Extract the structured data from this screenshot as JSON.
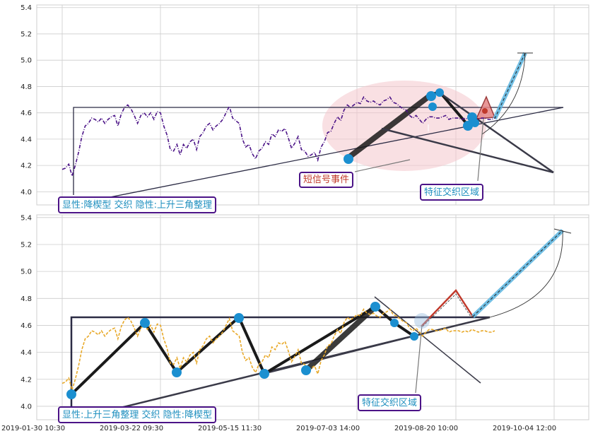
{
  "chart_data": [
    {
      "type": "line",
      "panel": "top",
      "title": "",
      "xlabel": "",
      "ylabel": "",
      "ylim": [
        3.9,
        5.42
      ],
      "yticks": [
        "4.0",
        "4.2",
        "4.4",
        "4.6",
        "4.8",
        "5.0",
        "5.2",
        "5.4"
      ],
      "grid": true,
      "series": [
        {
          "color": "#4b1387",
          "x": [
            0,
            5,
            10,
            15,
            20,
            25,
            30,
            35,
            40,
            45,
            50,
            55,
            60,
            65,
            70,
            75,
            80,
            85,
            90,
            95,
            100,
            105,
            110,
            115,
            120,
            125,
            130,
            135,
            140,
            145,
            150,
            155,
            160,
            165,
            170,
            175,
            180,
            185,
            190,
            195,
            200,
            205,
            210,
            215,
            220,
            225,
            230,
            235,
            240,
            245,
            250,
            255,
            260,
            265,
            270,
            275,
            280,
            285,
            290,
            295,
            300,
            305,
            310,
            315,
            320,
            325,
            330,
            335,
            340,
            345,
            350,
            355,
            360,
            365,
            370,
            375,
            380,
            385,
            390,
            395,
            400,
            405,
            410,
            415,
            420,
            425,
            430,
            435,
            440,
            445,
            450,
            455,
            460,
            465,
            470,
            475,
            480,
            485,
            490,
            495,
            500,
            505,
            510,
            515,
            520,
            525,
            530,
            535,
            540,
            545,
            550,
            555,
            560,
            565,
            570,
            575,
            580,
            585,
            590,
            595,
            600,
            605,
            610,
            615,
            620,
            625,
            630,
            635,
            640,
            645,
            650,
            655,
            660
          ],
          "values": [
            4.17,
            4.18,
            4.21,
            4.12,
            4.2,
            4.3,
            4.42,
            4.5,
            4.52,
            4.56,
            4.55,
            4.53,
            4.56,
            4.52,
            4.55,
            4.57,
            4.58,
            4.5,
            4.59,
            4.64,
            4.66,
            4.63,
            4.58,
            4.52,
            4.58,
            4.6,
            4.57,
            4.6,
            4.55,
            4.61,
            4.6,
            4.5,
            4.43,
            4.32,
            4.31,
            4.36,
            4.28,
            4.36,
            4.33,
            4.38,
            4.4,
            4.32,
            4.42,
            4.45,
            4.5,
            4.52,
            4.47,
            4.5,
            4.52,
            4.55,
            4.6,
            4.65,
            4.56,
            4.54,
            4.52,
            4.4,
            4.34,
            4.36,
            4.29,
            4.25,
            4.31,
            4.33,
            4.38,
            4.36,
            4.44,
            4.42,
            4.47,
            4.46,
            4.48,
            4.41,
            4.33,
            4.37,
            4.42,
            4.32,
            4.31,
            4.27,
            4.28,
            4.3,
            4.24,
            4.34,
            4.38,
            4.45,
            4.46,
            4.52,
            4.57,
            4.54,
            4.62,
            4.66,
            4.64,
            4.66,
            4.68,
            4.67,
            4.72,
            4.69,
            4.68,
            4.69,
            4.67,
            4.66,
            4.69,
            4.7,
            4.72,
            4.68,
            4.67,
            4.65,
            4.63,
            4.62,
            4.58,
            4.56,
            4.58,
            4.55,
            4.52,
            4.55,
            4.57,
            4.57,
            4.56,
            4.56,
            4.57,
            4.58,
            4.55,
            4.56,
            4.56,
            4.56,
            4.55,
            4.56,
            4.55,
            4.57,
            4.56,
            4.55,
            4.56,
            4.56,
            4.55,
            4.55,
            4.56
          ]
        }
      ],
      "annotations": [
        {
          "text": "显性:降楔型 交织 隐性:上升三角整理",
          "color": "#1f8fbf",
          "border": "#4b1387"
        },
        {
          "text": "短信号事件",
          "color": "#c0392b",
          "border": "#4b1387"
        },
        {
          "text": "特征交织区域",
          "color": "#1f8fbf",
          "border": "#4b1387"
        }
      ]
    },
    {
      "type": "line",
      "panel": "bottom",
      "title": "",
      "xlabel": "",
      "ylabel": "",
      "ylim": [
        3.9,
        5.42
      ],
      "yticks": [
        "4.0",
        "4.2",
        "4.4",
        "4.6",
        "4.8",
        "5.0",
        "5.2",
        "5.4"
      ],
      "grid": true,
      "series": [
        {
          "color": "#e8a92a",
          "x": [
            0,
            5,
            10,
            15,
            20,
            25,
            30,
            35,
            40,
            45,
            50,
            55,
            60,
            65,
            70,
            75,
            80,
            85,
            90,
            95,
            100,
            105,
            110,
            115,
            120,
            125,
            130,
            135,
            140,
            145,
            150,
            155,
            160,
            165,
            170,
            175,
            180,
            185,
            190,
            195,
            200,
            205,
            210,
            215,
            220,
            225,
            230,
            235,
            240,
            245,
            250,
            255,
            260,
            265,
            270,
            275,
            280,
            285,
            290,
            295,
            300,
            305,
            310,
            315,
            320,
            325,
            330,
            335,
            340,
            345,
            350,
            355,
            360,
            365,
            370,
            375,
            380,
            385,
            390,
            395,
            400,
            405,
            410,
            415,
            420,
            425,
            430,
            435,
            440,
            445,
            450,
            455,
            460,
            465,
            470,
            475,
            480,
            485,
            490,
            495,
            500,
            505,
            510,
            515,
            520,
            525,
            530,
            535,
            540,
            545,
            550,
            555,
            560,
            565,
            570,
            575,
            580,
            585,
            590,
            595,
            600,
            605,
            610,
            615,
            620,
            625,
            630,
            635,
            640,
            645,
            650,
            655,
            660
          ],
          "values": [
            4.17,
            4.18,
            4.21,
            4.12,
            4.2,
            4.3,
            4.42,
            4.5,
            4.52,
            4.56,
            4.55,
            4.53,
            4.56,
            4.52,
            4.55,
            4.57,
            4.58,
            4.5,
            4.59,
            4.64,
            4.66,
            4.63,
            4.58,
            4.52,
            4.58,
            4.6,
            4.57,
            4.6,
            4.55,
            4.61,
            4.6,
            4.5,
            4.43,
            4.32,
            4.31,
            4.36,
            4.28,
            4.36,
            4.33,
            4.38,
            4.4,
            4.32,
            4.42,
            4.45,
            4.5,
            4.52,
            4.47,
            4.5,
            4.52,
            4.55,
            4.6,
            4.65,
            4.56,
            4.54,
            4.52,
            4.4,
            4.34,
            4.36,
            4.29,
            4.25,
            4.31,
            4.33,
            4.38,
            4.36,
            4.44,
            4.42,
            4.47,
            4.46,
            4.48,
            4.41,
            4.33,
            4.37,
            4.42,
            4.32,
            4.31,
            4.27,
            4.28,
            4.3,
            4.24,
            4.34,
            4.38,
            4.45,
            4.46,
            4.52,
            4.57,
            4.54,
            4.62,
            4.66,
            4.64,
            4.66,
            4.68,
            4.67,
            4.72,
            4.69,
            4.68,
            4.69,
            4.67,
            4.66,
            4.69,
            4.7,
            4.72,
            4.68,
            4.67,
            4.65,
            4.63,
            4.62,
            4.58,
            4.56,
            4.58,
            4.55,
            4.52,
            4.55,
            4.57,
            4.57,
            4.56,
            4.56,
            4.57,
            4.58,
            4.55,
            4.56,
            4.56,
            4.56,
            4.55,
            4.56,
            4.55,
            4.57,
            4.56,
            4.55,
            4.56,
            4.56,
            4.55,
            4.55,
            4.56
          ]
        }
      ],
      "xticks": [
        "2019-01-30 10:30",
        "2019-03-22 09:30",
        "2019-05-15 11:30",
        "2019-07-03 14:00",
        "2019-08-20 10:00",
        "2019-10-04 12:00"
      ],
      "annotations": [
        {
          "text": "显性:上升三角整理 交织 隐性:降楔型",
          "color": "#1f8fbf",
          "border": "#4b1387"
        },
        {
          "text": "特征交织区域",
          "color": "#1f8fbf",
          "border": "#4b1387"
        }
      ]
    }
  ]
}
